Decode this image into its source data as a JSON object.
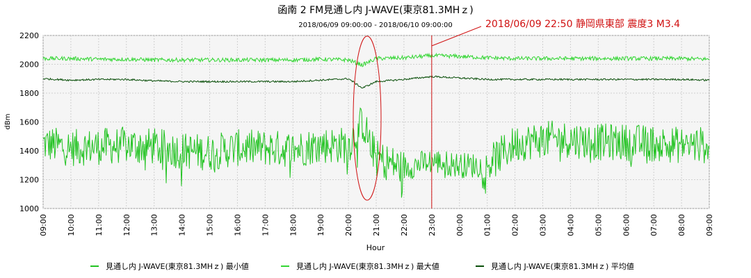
{
  "chart_data": {
    "type": "line",
    "title": "函南 2 FM見通し内 J-WAVE(東京81.3MHｚ)",
    "subtitle": "2018/06/09 09:00:00 - 2018/06/10 09:00:00",
    "annotation": "2018/06/09 22:50 静岡県東部 震度3 M3.4",
    "annotation_x": "23:00",
    "xlabel": "Hour",
    "ylabel": "dBm",
    "ylim": [
      1000,
      2200
    ],
    "yticks": [
      "1000",
      "1200",
      "1400",
      "1600",
      "1800",
      "2000",
      "2200"
    ],
    "xticks": [
      "09:00",
      "10:00",
      "11:00",
      "12:00",
      "13:00",
      "14:00",
      "15:00",
      "16:00",
      "17:00",
      "18:00",
      "19:00",
      "20:00",
      "21:00",
      "22:00",
      "23:00",
      "00:00",
      "01:00",
      "02:00",
      "03:00",
      "04:00",
      "05:00",
      "06:00",
      "07:00",
      "08:00",
      "09:00"
    ],
    "grid": true,
    "legend_position": "bottom",
    "series": [
      {
        "name": "見通し内 J-WAVE(東京81.3MHｚ) 最小値",
        "color": "#22c322",
        "x": [
          "09:00",
          "10:00",
          "11:00",
          "12:00",
          "13:00",
          "14:00",
          "15:00",
          "16:00",
          "17:00",
          "18:00",
          "19:00",
          "20:00",
          "20:30",
          "21:00",
          "22:00",
          "23:00",
          "00:00",
          "01:00",
          "02:00",
          "03:00",
          "04:00",
          "05:00",
          "06:00",
          "07:00",
          "08:00",
          "09:00"
        ],
        "values": [
          1450,
          1420,
          1430,
          1440,
          1430,
          1400,
          1390,
          1420,
          1420,
          1410,
          1440,
          1440,
          1600,
          1350,
          1280,
          1330,
          1300,
          1300,
          1450,
          1480,
          1480,
          1460,
          1460,
          1450,
          1440,
          1440
        ]
      },
      {
        "name": "見通し内 J-WAVE(東京81.3MHｚ) 最大値",
        "color": "#33d633",
        "x": [
          "09:00",
          "10:00",
          "11:00",
          "12:00",
          "13:00",
          "14:00",
          "15:00",
          "16:00",
          "17:00",
          "18:00",
          "19:00",
          "20:00",
          "20:30",
          "21:00",
          "22:00",
          "23:00",
          "00:00",
          "01:00",
          "02:00",
          "03:00",
          "04:00",
          "05:00",
          "06:00",
          "07:00",
          "08:00",
          "09:00"
        ],
        "values": [
          2040,
          2040,
          2035,
          2035,
          2030,
          2030,
          2030,
          2030,
          2030,
          2030,
          2035,
          2030,
          1995,
          2040,
          2045,
          2060,
          2055,
          2045,
          2040,
          2040,
          2040,
          2040,
          2040,
          2040,
          2040,
          2035
        ]
      },
      {
        "name": "見通し内 J-WAVE(東京81.3MHｚ) 平均値",
        "color": "#0a4f0a",
        "x": [
          "09:00",
          "10:00",
          "11:00",
          "12:00",
          "13:00",
          "14:00",
          "15:00",
          "16:00",
          "17:00",
          "18:00",
          "19:00",
          "20:00",
          "20:30",
          "21:00",
          "22:00",
          "23:00",
          "00:00",
          "01:00",
          "02:00",
          "03:00",
          "04:00",
          "05:00",
          "06:00",
          "07:00",
          "08:00",
          "09:00"
        ],
        "values": [
          1900,
          1890,
          1895,
          1895,
          1885,
          1880,
          1880,
          1880,
          1880,
          1880,
          1890,
          1900,
          1835,
          1880,
          1895,
          1915,
          1905,
          1895,
          1895,
          1895,
          1895,
          1895,
          1895,
          1895,
          1895,
          1890
        ]
      }
    ]
  }
}
